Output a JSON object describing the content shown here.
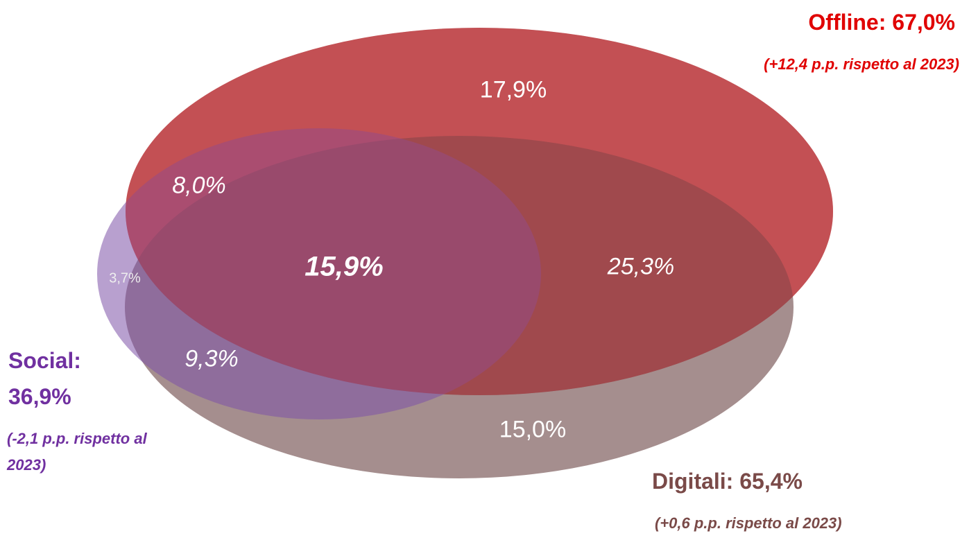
{
  "sets": [
    {
      "label": "Offline: 67,0%",
      "note": "(+12,4 p.p. rispetto al 2023)"
    },
    {
      "label": "Digitali: 65,4%",
      "note": "(+0,6 p.p. rispetto al 2023)"
    },
    {
      "label": "Social: 36,9%",
      "note": "(-2,1 p.p. rispetto al 2023)"
    }
  ],
  "regions": [
    {
      "sets": "Offline",
      "label": "17,9%"
    },
    {
      "sets": "Offline + Social",
      "label": "8,0%"
    },
    {
      "sets": "Offline + Digitali + Social",
      "label": "15,9%"
    },
    {
      "sets": "Offline + Digitali",
      "label": "25,3%"
    },
    {
      "sets": "Social",
      "label": "3,7%"
    },
    {
      "sets": "Digitali + Social",
      "label": "9,3%"
    },
    {
      "sets": "Digitali",
      "label": "15,0%"
    }
  ]
}
